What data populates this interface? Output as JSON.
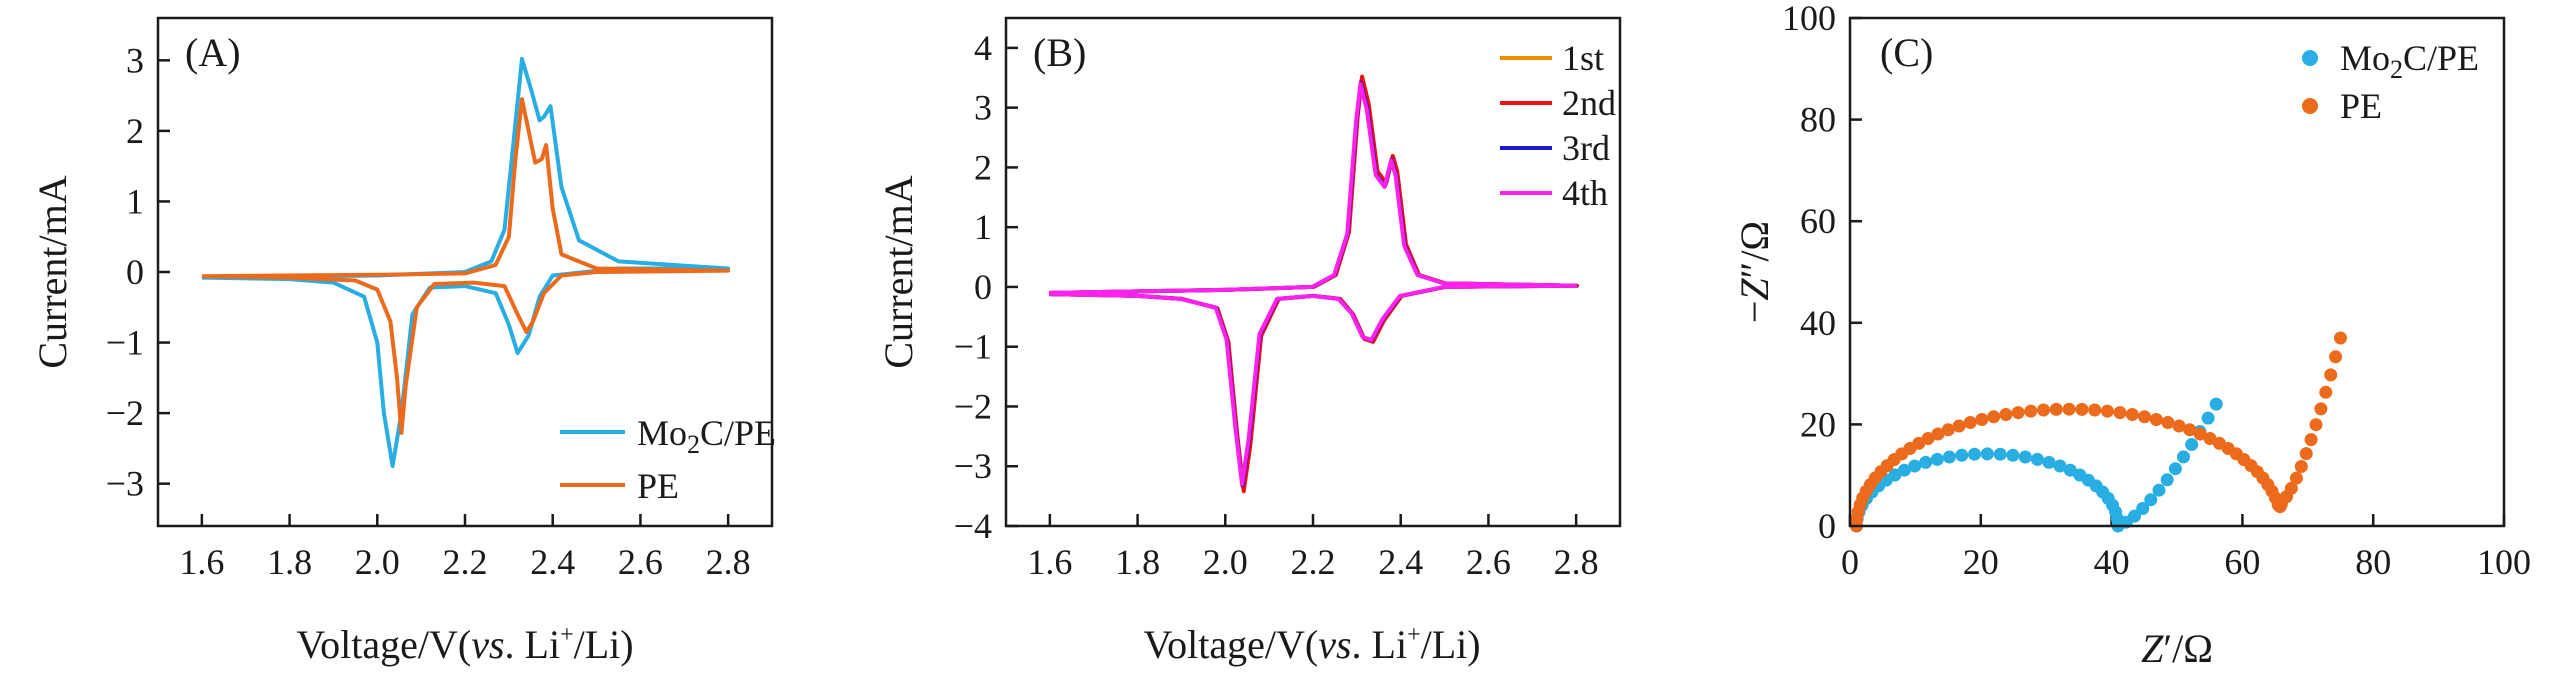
{
  "colors": {
    "mo2c": "#29aee4",
    "pe": "#ec6a1c",
    "first": "#f09000",
    "second": "#ee1111",
    "third": "#1a1acc",
    "fourth": "#ff22ee"
  },
  "chart_data": [
    {
      "type": "line",
      "panel": "(A)",
      "xlabel": "Voltage/V(vs. Li⁺/Li)",
      "ylabel": "Current/mA",
      "xlim": [
        1.5,
        2.9
      ],
      "ylim": [
        -3.6,
        3.6
      ],
      "xticks": [
        1.6,
        1.8,
        2.0,
        2.2,
        2.4,
        2.6,
        2.8
      ],
      "yticks": [
        -3,
        -2,
        -1,
        0,
        1,
        2,
        3
      ],
      "xtick_labels": [
        "1.6",
        "1.8",
        "2.0",
        "2.2",
        "2.4",
        "2.6",
        "2.8"
      ],
      "ytick_labels": [
        "−3",
        "−2",
        "−1",
        "0",
        "1",
        "2",
        "3"
      ],
      "legend_position": "bottom-right",
      "series": [
        {
          "name": "Mo₂C/PE",
          "color_key": "mo2c",
          "anodic": [
            [
              1.6,
              -0.08
            ],
            [
              2.0,
              -0.05
            ],
            [
              2.2,
              0.0
            ],
            [
              2.26,
              0.15
            ],
            [
              2.29,
              0.6
            ],
            [
              2.31,
              1.8
            ],
            [
              2.33,
              3.02
            ],
            [
              2.35,
              2.6
            ],
            [
              2.37,
              2.15
            ],
            [
              2.38,
              2.2
            ],
            [
              2.395,
              2.35
            ],
            [
              2.42,
              1.2
            ],
            [
              2.46,
              0.45
            ],
            [
              2.55,
              0.15
            ],
            [
              2.8,
              0.05
            ]
          ],
          "cathodic": [
            [
              2.8,
              0.05
            ],
            [
              2.55,
              0.05
            ],
            [
              2.4,
              -0.05
            ],
            [
              2.37,
              -0.35
            ],
            [
              2.345,
              -0.9
            ],
            [
              2.32,
              -1.15
            ],
            [
              2.3,
              -0.75
            ],
            [
              2.27,
              -0.3
            ],
            [
              2.2,
              -0.2
            ],
            [
              2.12,
              -0.22
            ],
            [
              2.08,
              -0.6
            ],
            [
              2.055,
              -2.0
            ],
            [
              2.035,
              -2.75
            ],
            [
              2.015,
              -2.0
            ],
            [
              2.0,
              -1.0
            ],
            [
              1.97,
              -0.35
            ],
            [
              1.9,
              -0.15
            ],
            [
              1.8,
              -0.1
            ],
            [
              1.6,
              -0.08
            ]
          ]
        },
        {
          "name": "PE",
          "color_key": "pe",
          "anodic": [
            [
              1.6,
              -0.06
            ],
            [
              2.0,
              -0.04
            ],
            [
              2.2,
              -0.02
            ],
            [
              2.27,
              0.1
            ],
            [
              2.3,
              0.5
            ],
            [
              2.315,
              1.6
            ],
            [
              2.33,
              2.45
            ],
            [
              2.345,
              2.0
            ],
            [
              2.36,
              1.55
            ],
            [
              2.375,
              1.6
            ],
            [
              2.385,
              1.8
            ],
            [
              2.4,
              0.9
            ],
            [
              2.42,
              0.25
            ],
            [
              2.5,
              0.05
            ],
            [
              2.8,
              0.02
            ]
          ],
          "cathodic": [
            [
              2.8,
              0.02
            ],
            [
              2.5,
              0.0
            ],
            [
              2.42,
              -0.05
            ],
            [
              2.38,
              -0.3
            ],
            [
              2.355,
              -0.7
            ],
            [
              2.34,
              -0.85
            ],
            [
              2.32,
              -0.6
            ],
            [
              2.29,
              -0.2
            ],
            [
              2.22,
              -0.15
            ],
            [
              2.13,
              -0.17
            ],
            [
              2.09,
              -0.5
            ],
            [
              2.065,
              -1.6
            ],
            [
              2.055,
              -2.28
            ],
            [
              2.045,
              -1.5
            ],
            [
              2.03,
              -0.7
            ],
            [
              2.0,
              -0.25
            ],
            [
              1.95,
              -0.12
            ],
            [
              1.8,
              -0.08
            ],
            [
              1.6,
              -0.06
            ]
          ]
        }
      ]
    },
    {
      "type": "line",
      "panel": "(B)",
      "xlabel": "Voltage/V(vs. Li⁺/Li)",
      "ylabel": "Current/mA",
      "xlim": [
        1.5,
        2.9
      ],
      "ylim": [
        -4.0,
        4.5
      ],
      "xticks": [
        1.6,
        1.8,
        2.0,
        2.2,
        2.4,
        2.6,
        2.8
      ],
      "yticks": [
        -4,
        -3,
        -2,
        -1,
        0,
        1,
        2,
        3,
        4
      ],
      "xtick_labels": [
        "1.6",
        "1.8",
        "2.0",
        "2.2",
        "2.4",
        "2.6",
        "2.8"
      ],
      "ytick_labels": [
        "−4",
        "−3",
        "−2",
        "−1",
        "0",
        "1",
        "2",
        "3",
        "4"
      ],
      "legend_position": "top-right",
      "series": [
        {
          "name": "1st",
          "color_key": "first",
          "peak_scale": 1.0,
          "shift": 0.0
        },
        {
          "name": "2nd",
          "color_key": "second",
          "peak_scale": 1.02,
          "shift": 0.002
        },
        {
          "name": "3rd",
          "color_key": "third",
          "peak_scale": 0.99,
          "shift": -0.001
        },
        {
          "name": "4th",
          "color_key": "fourth",
          "peak_scale": 0.985,
          "shift": -0.002
        }
      ],
      "base_curve": {
        "anodic": [
          [
            1.6,
            -0.1
          ],
          [
            2.0,
            -0.05
          ],
          [
            2.2,
            0.0
          ],
          [
            2.25,
            0.2
          ],
          [
            2.28,
            0.9
          ],
          [
            2.3,
            2.8
          ],
          [
            2.31,
            3.45
          ],
          [
            2.325,
            3.0
          ],
          [
            2.345,
            1.9
          ],
          [
            2.365,
            1.7
          ],
          [
            2.38,
            2.15
          ],
          [
            2.39,
            1.9
          ],
          [
            2.41,
            0.7
          ],
          [
            2.44,
            0.2
          ],
          [
            2.5,
            0.06
          ],
          [
            2.8,
            0.02
          ]
        ],
        "cathodic": [
          [
            2.8,
            0.02
          ],
          [
            2.5,
            0.0
          ],
          [
            2.4,
            -0.15
          ],
          [
            2.36,
            -0.55
          ],
          [
            2.335,
            -0.9
          ],
          [
            2.315,
            -0.85
          ],
          [
            2.29,
            -0.45
          ],
          [
            2.26,
            -0.2
          ],
          [
            2.2,
            -0.15
          ],
          [
            2.12,
            -0.2
          ],
          [
            2.08,
            -0.8
          ],
          [
            2.055,
            -2.6
          ],
          [
            2.04,
            -3.35
          ],
          [
            2.025,
            -2.4
          ],
          [
            2.005,
            -0.9
          ],
          [
            1.98,
            -0.35
          ],
          [
            1.9,
            -0.2
          ],
          [
            1.8,
            -0.15
          ],
          [
            1.6,
            -0.12
          ]
        ]
      }
    },
    {
      "type": "scatter",
      "panel": "(C)",
      "xlabel": "Z′/Ω",
      "ylabel": "−Z″/Ω",
      "xlim": [
        0,
        100
      ],
      "ylim": [
        0,
        100
      ],
      "xticks": [
        0,
        20,
        40,
        60,
        80,
        100
      ],
      "yticks": [
        0,
        20,
        40,
        60,
        80,
        100
      ],
      "xtick_labels": [
        "0",
        "20",
        "40",
        "60",
        "80",
        "100"
      ],
      "ytick_labels": [
        "0",
        "20",
        "40",
        "60",
        "80",
        "100"
      ],
      "legend_position": "top-right",
      "series": [
        {
          "name": "Mo₂C/PE",
          "color_key": "mo2c",
          "arc_start": 1.0,
          "arc_end": 41.0,
          "arc_peak": 14.2,
          "tail_end": [
            56.0,
            24.0
          ]
        },
        {
          "name": "PE",
          "color_key": "pe",
          "arc_start": 1.0,
          "arc_end": 66.0,
          "arc_peak": 23.0,
          "valley": 4.8,
          "tail_end": [
            75.0,
            37.0
          ]
        }
      ]
    }
  ]
}
